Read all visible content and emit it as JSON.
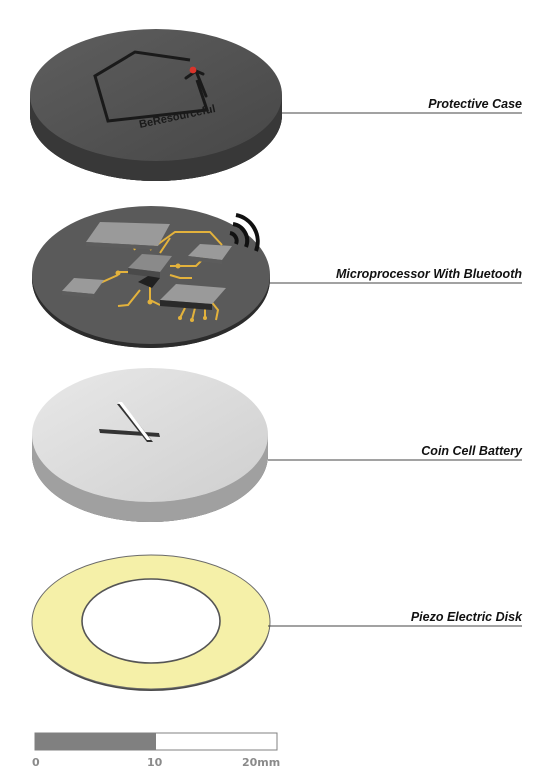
{
  "components": [
    {
      "label": "Protective Case"
    },
    {
      "label": "Microprocessor With Bluetooth"
    },
    {
      "label": "Coin Cell Battery"
    },
    {
      "label": "Piezo Electric Disk"
    }
  ],
  "case_logo_text": "BeResourceful",
  "scale_bar": {
    "ticks": [
      "0",
      "10",
      "20mm"
    ],
    "filled_fraction": 0.5
  },
  "colors": {
    "case": "#505050",
    "case_side": "#333333",
    "pcb": "#5a5a5a",
    "chip": "#9a9a9a",
    "trace": "#e3b23c",
    "battery": "#d9d9d9",
    "battery_side": "#9e9e9e",
    "piezo_ring": "#f5f0a8",
    "logo_dot": "#d9342b",
    "scale_fill": "#808080"
  }
}
